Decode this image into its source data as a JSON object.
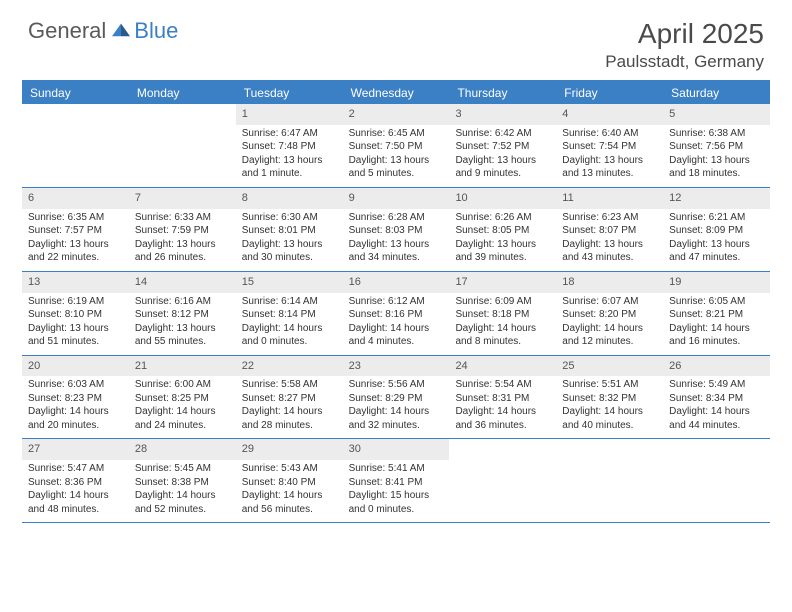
{
  "brand": {
    "name1": "General",
    "name2": "Blue"
  },
  "title": "April 2025",
  "location": "Paulsstadt, Germany",
  "colors": {
    "primary": "#3b7fc4",
    "header_bg": "#ececec",
    "text": "#333333",
    "muted": "#5a5a5a",
    "background": "#ffffff"
  },
  "typography": {
    "title_fontsize": 28,
    "location_fontsize": 17,
    "weekday_fontsize": 12,
    "daynum_fontsize": 11,
    "body_fontsize": 10
  },
  "weekdays": [
    "Sunday",
    "Monday",
    "Tuesday",
    "Wednesday",
    "Thursday",
    "Friday",
    "Saturday"
  ],
  "layout": {
    "first_weekday_index": 2,
    "days_in_month": 30
  },
  "days": {
    "1": {
      "sunrise": "Sunrise: 6:47 AM",
      "sunset": "Sunset: 7:48 PM",
      "daylight": "Daylight: 13 hours and 1 minute."
    },
    "2": {
      "sunrise": "Sunrise: 6:45 AM",
      "sunset": "Sunset: 7:50 PM",
      "daylight": "Daylight: 13 hours and 5 minutes."
    },
    "3": {
      "sunrise": "Sunrise: 6:42 AM",
      "sunset": "Sunset: 7:52 PM",
      "daylight": "Daylight: 13 hours and 9 minutes."
    },
    "4": {
      "sunrise": "Sunrise: 6:40 AM",
      "sunset": "Sunset: 7:54 PM",
      "daylight": "Daylight: 13 hours and 13 minutes."
    },
    "5": {
      "sunrise": "Sunrise: 6:38 AM",
      "sunset": "Sunset: 7:56 PM",
      "daylight": "Daylight: 13 hours and 18 minutes."
    },
    "6": {
      "sunrise": "Sunrise: 6:35 AM",
      "sunset": "Sunset: 7:57 PM",
      "daylight": "Daylight: 13 hours and 22 minutes."
    },
    "7": {
      "sunrise": "Sunrise: 6:33 AM",
      "sunset": "Sunset: 7:59 PM",
      "daylight": "Daylight: 13 hours and 26 minutes."
    },
    "8": {
      "sunrise": "Sunrise: 6:30 AM",
      "sunset": "Sunset: 8:01 PM",
      "daylight": "Daylight: 13 hours and 30 minutes."
    },
    "9": {
      "sunrise": "Sunrise: 6:28 AM",
      "sunset": "Sunset: 8:03 PM",
      "daylight": "Daylight: 13 hours and 34 minutes."
    },
    "10": {
      "sunrise": "Sunrise: 6:26 AM",
      "sunset": "Sunset: 8:05 PM",
      "daylight": "Daylight: 13 hours and 39 minutes."
    },
    "11": {
      "sunrise": "Sunrise: 6:23 AM",
      "sunset": "Sunset: 8:07 PM",
      "daylight": "Daylight: 13 hours and 43 minutes."
    },
    "12": {
      "sunrise": "Sunrise: 6:21 AM",
      "sunset": "Sunset: 8:09 PM",
      "daylight": "Daylight: 13 hours and 47 minutes."
    },
    "13": {
      "sunrise": "Sunrise: 6:19 AM",
      "sunset": "Sunset: 8:10 PM",
      "daylight": "Daylight: 13 hours and 51 minutes."
    },
    "14": {
      "sunrise": "Sunrise: 6:16 AM",
      "sunset": "Sunset: 8:12 PM",
      "daylight": "Daylight: 13 hours and 55 minutes."
    },
    "15": {
      "sunrise": "Sunrise: 6:14 AM",
      "sunset": "Sunset: 8:14 PM",
      "daylight": "Daylight: 14 hours and 0 minutes."
    },
    "16": {
      "sunrise": "Sunrise: 6:12 AM",
      "sunset": "Sunset: 8:16 PM",
      "daylight": "Daylight: 14 hours and 4 minutes."
    },
    "17": {
      "sunrise": "Sunrise: 6:09 AM",
      "sunset": "Sunset: 8:18 PM",
      "daylight": "Daylight: 14 hours and 8 minutes."
    },
    "18": {
      "sunrise": "Sunrise: 6:07 AM",
      "sunset": "Sunset: 8:20 PM",
      "daylight": "Daylight: 14 hours and 12 minutes."
    },
    "19": {
      "sunrise": "Sunrise: 6:05 AM",
      "sunset": "Sunset: 8:21 PM",
      "daylight": "Daylight: 14 hours and 16 minutes."
    },
    "20": {
      "sunrise": "Sunrise: 6:03 AM",
      "sunset": "Sunset: 8:23 PM",
      "daylight": "Daylight: 14 hours and 20 minutes."
    },
    "21": {
      "sunrise": "Sunrise: 6:00 AM",
      "sunset": "Sunset: 8:25 PM",
      "daylight": "Daylight: 14 hours and 24 minutes."
    },
    "22": {
      "sunrise": "Sunrise: 5:58 AM",
      "sunset": "Sunset: 8:27 PM",
      "daylight": "Daylight: 14 hours and 28 minutes."
    },
    "23": {
      "sunrise": "Sunrise: 5:56 AM",
      "sunset": "Sunset: 8:29 PM",
      "daylight": "Daylight: 14 hours and 32 minutes."
    },
    "24": {
      "sunrise": "Sunrise: 5:54 AM",
      "sunset": "Sunset: 8:31 PM",
      "daylight": "Daylight: 14 hours and 36 minutes."
    },
    "25": {
      "sunrise": "Sunrise: 5:51 AM",
      "sunset": "Sunset: 8:32 PM",
      "daylight": "Daylight: 14 hours and 40 minutes."
    },
    "26": {
      "sunrise": "Sunrise: 5:49 AM",
      "sunset": "Sunset: 8:34 PM",
      "daylight": "Daylight: 14 hours and 44 minutes."
    },
    "27": {
      "sunrise": "Sunrise: 5:47 AM",
      "sunset": "Sunset: 8:36 PM",
      "daylight": "Daylight: 14 hours and 48 minutes."
    },
    "28": {
      "sunrise": "Sunrise: 5:45 AM",
      "sunset": "Sunset: 8:38 PM",
      "daylight": "Daylight: 14 hours and 52 minutes."
    },
    "29": {
      "sunrise": "Sunrise: 5:43 AM",
      "sunset": "Sunset: 8:40 PM",
      "daylight": "Daylight: 14 hours and 56 minutes."
    },
    "30": {
      "sunrise": "Sunrise: 5:41 AM",
      "sunset": "Sunset: 8:41 PM",
      "daylight": "Daylight: 15 hours and 0 minutes."
    }
  }
}
